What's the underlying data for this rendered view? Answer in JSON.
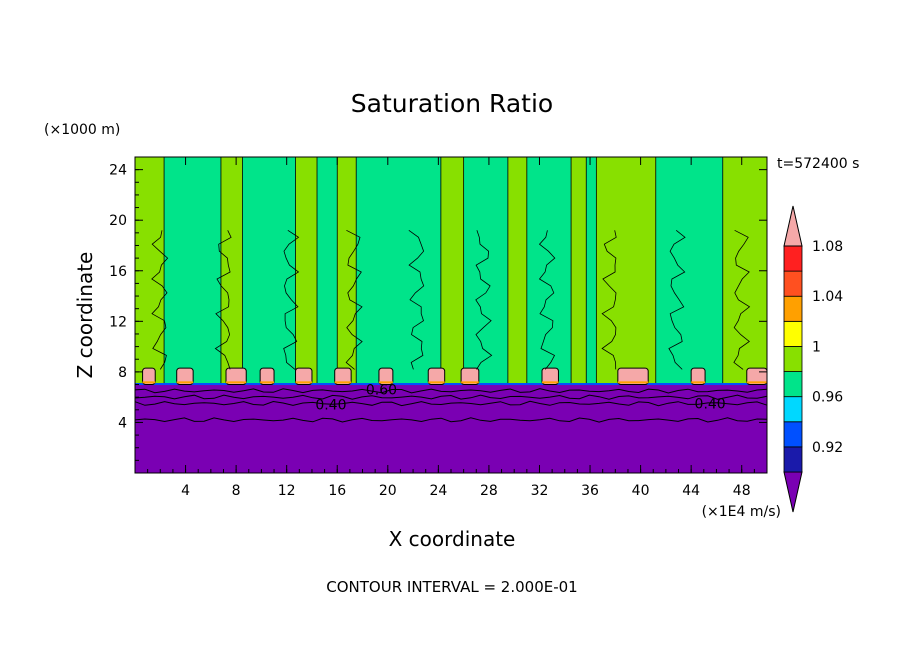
{
  "chart_data": {
    "type": "heatmap",
    "title": "Saturation Ratio",
    "xlabel": "X coordinate",
    "ylabel": "Z coordinate",
    "x_unit": "(×1E4 m/s)",
    "y_unit": "(×1000 m)",
    "time_label": "t=572400 s",
    "footer": "CONTOUR INTERVAL = 2.000E-01",
    "xlim": [
      0,
      50
    ],
    "ylim": [
      0,
      25
    ],
    "x_ticks": [
      4,
      8,
      12,
      16,
      20,
      24,
      28,
      32,
      36,
      40,
      44,
      48
    ],
    "y_ticks": [
      4,
      8,
      12,
      16,
      20,
      24
    ],
    "contour_labels": [
      {
        "text": "0.40",
        "x": 15.5,
        "z": 5.4
      },
      {
        "text": "0.60",
        "x": 19.5,
        "z": 6.6
      },
      {
        "text": "0.40",
        "x": 45.5,
        "z": 5.5
      }
    ],
    "colorbar": {
      "levels": [
        0.92,
        0.96,
        1.0,
        1.04,
        1.08
      ],
      "tick_labels": [
        "0.92",
        "0.96",
        "1",
        "1.04",
        "1.08"
      ],
      "colors": [
        "#7a00b3",
        "#1a1aaa",
        "#0050ff",
        "#00d8ff",
        "#00e48a",
        "#88e000",
        "#ffff00",
        "#ffa000",
        "#ff5020",
        "#ff2020",
        "#f5a8a8"
      ],
      "extend": "both"
    },
    "fields": {
      "dry_layer_top_z": 7.0,
      "dry_color": "#7a00b3",
      "sat_color": "#00e48a",
      "supersat_color": "#88e000",
      "cap_color": "#f5a8a8",
      "supersat_columns": [
        {
          "x0": 0.0,
          "x1": 2.3
        },
        {
          "x0": 6.8,
          "x1": 8.5
        },
        {
          "x0": 12.7,
          "x1": 14.4
        },
        {
          "x0": 16.0,
          "x1": 17.5
        },
        {
          "x0": 24.2,
          "x1": 26.0
        },
        {
          "x0": 29.5,
          "x1": 31.0
        },
        {
          "x0": 34.5,
          "x1": 35.7
        },
        {
          "x0": 36.5,
          "x1": 41.2
        },
        {
          "x0": 46.5,
          "x1": 50.0
        }
      ],
      "caps": [
        {
          "x": 0.6,
          "w": 1.0
        },
        {
          "x": 3.3,
          "w": 1.3
        },
        {
          "x": 7.2,
          "w": 1.6
        },
        {
          "x": 9.9,
          "w": 1.1
        },
        {
          "x": 12.7,
          "w": 1.3
        },
        {
          "x": 15.8,
          "w": 1.3
        },
        {
          "x": 19.3,
          "w": 1.1
        },
        {
          "x": 23.2,
          "w": 1.3
        },
        {
          "x": 25.8,
          "w": 1.4
        },
        {
          "x": 32.2,
          "w": 1.3
        },
        {
          "x": 38.2,
          "w": 2.4
        },
        {
          "x": 44.0,
          "w": 1.1
        },
        {
          "x": 48.4,
          "w": 1.6
        }
      ],
      "contour_z": [
        4.2,
        5.5,
        6.0,
        6.5
      ]
    }
  }
}
